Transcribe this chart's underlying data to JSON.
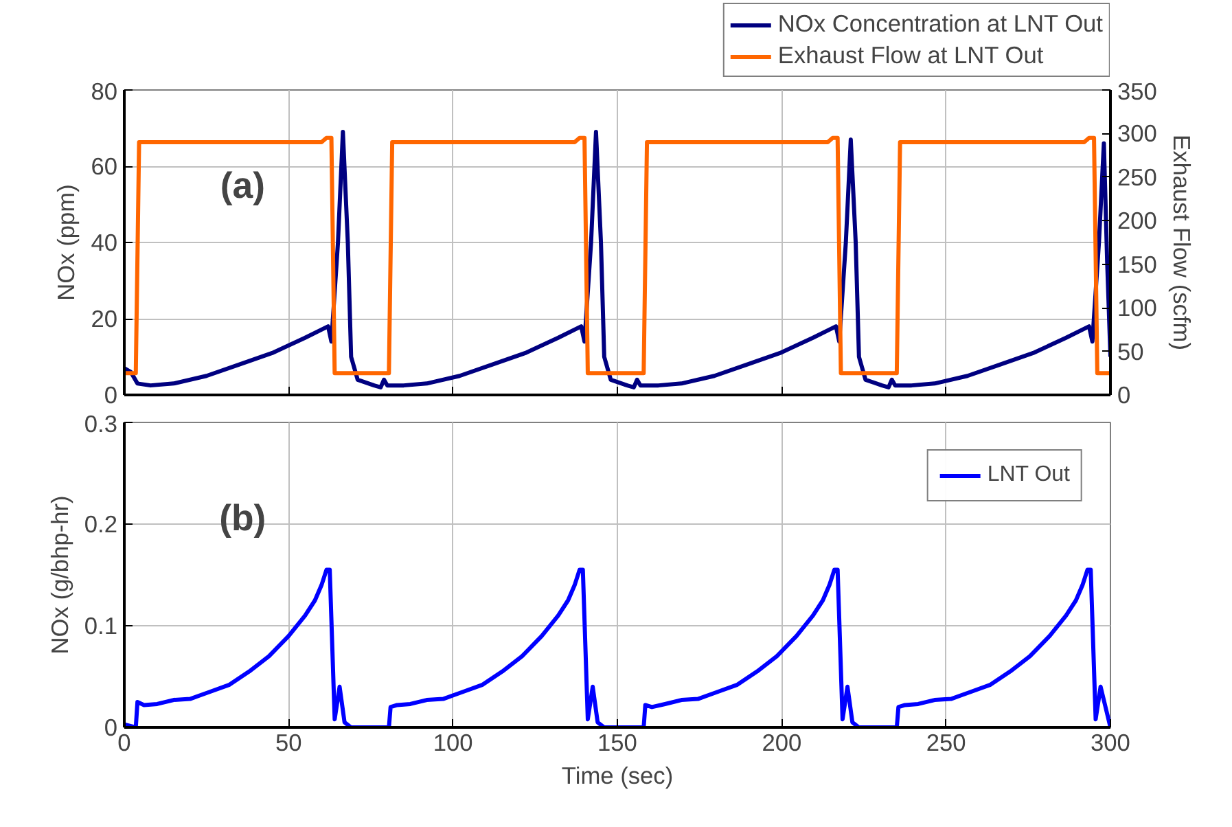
{
  "chart_data": [
    {
      "type": "line",
      "ylabel": "NOx (ppm)",
      "y2label": "Exhaust Flow (scfm)",
      "annotations": [
        "(a)"
      ],
      "grid": true,
      "legend": "top right",
      "tick_labels": "y",
      "line_style": "solid",
      "marker": "none",
      "xlim": [
        0,
        300
      ],
      "xticks": [
        0,
        50,
        100,
        150,
        200,
        250,
        300
      ],
      "ylim": [
        0,
        80
      ],
      "yticks": [
        0,
        20,
        40,
        60,
        80
      ],
      "y2lim": [
        0,
        350
      ],
      "y2ticks": [
        0,
        50,
        100,
        150,
        200,
        250,
        300,
        350
      ],
      "series": [
        {
          "name": "NOx Concentration at LNT Out",
          "color": "#000080",
          "x": [
            0,
            2,
            4,
            8,
            15,
            25,
            35,
            45,
            55,
            62,
            63,
            65,
            66.5,
            68,
            69,
            71,
            76,
            78,
            79,
            80,
            85,
            92,
            102,
            112,
            122,
            132,
            139,
            140,
            142,
            143.5,
            145,
            146,
            148,
            153,
            155,
            156,
            157,
            162.5,
            169.5,
            179.5,
            189.5,
            199.5,
            209.5,
            216.5,
            217.5,
            219.5,
            221,
            222.5,
            223.5,
            225.5,
            230.5,
            232.5,
            233.5,
            234.5,
            239.5,
            246.5,
            256.5,
            266.5,
            276.5,
            286.5,
            293.5,
            294.5,
            296.5,
            298,
            299,
            300
          ],
          "values": [
            7,
            6,
            3,
            2.5,
            3,
            5,
            8,
            11,
            15,
            18,
            14,
            40,
            69,
            40,
            10,
            4,
            2.5,
            2,
            4,
            2.5,
            2.5,
            3,
            5,
            8,
            11,
            15,
            18,
            14,
            40,
            69,
            40,
            10,
            4,
            2.5,
            2,
            4,
            2.5,
            2.5,
            3,
            5,
            8,
            11,
            15,
            18,
            14,
            40,
            67,
            40,
            10,
            4,
            2.5,
            2,
            4,
            2.5,
            2.5,
            3,
            5,
            8,
            11,
            15,
            18,
            14,
            40,
            66,
            35,
            10
          ]
        },
        {
          "name": "Exhaust Flow at LNT Out",
          "color": "#ff6600",
          "axis": "y2",
          "x": [
            0,
            3.5,
            4.5,
            60,
            61.5,
            63,
            64,
            80.5,
            81.5,
            137,
            138.5,
            140,
            141,
            158,
            159,
            214,
            215.5,
            217,
            218,
            235,
            236,
            292,
            293.5,
            295,
            296,
            300
          ],
          "values": [
            25,
            25,
            290,
            290,
            295,
            295,
            25,
            25,
            290,
            290,
            295,
            295,
            25,
            25,
            290,
            290,
            295,
            295,
            25,
            25,
            290,
            290,
            295,
            295,
            25,
            25
          ]
        }
      ]
    },
    {
      "type": "line",
      "xlabel": "Time (sec)",
      "ylabel": "NOx (g/bhp-hr)",
      "annotations": [
        "(b)"
      ],
      "grid": true,
      "legend": "top right",
      "line_style": "solid",
      "marker": "none",
      "xlim": [
        0,
        300
      ],
      "xticks": [
        0,
        50,
        100,
        150,
        200,
        250,
        300
      ],
      "ylim": [
        0,
        0.3
      ],
      "yticks": [
        {
          "value": 0,
          "label": "0"
        },
        0.1,
        0.2,
        0.3
      ],
      "series": [
        {
          "name": "LNT Out",
          "color": "#0000ff",
          "x": [
            0,
            3.5,
            4,
            6,
            10,
            15,
            20,
            26,
            32,
            38,
            44,
            50,
            55,
            58,
            60,
            61.5,
            62.5,
            64,
            65.5,
            67,
            69,
            80.5,
            81,
            83,
            87,
            92,
            97,
            103,
            109,
            115,
            121,
            127,
            132,
            135,
            137,
            138.5,
            139.5,
            141,
            142.5,
            144,
            146,
            158,
            158.5,
            160.5,
            164.5,
            169.5,
            174.5,
            180.5,
            186.5,
            192.5,
            198.5,
            204.5,
            209.5,
            212.5,
            214.5,
            216,
            217,
            218.5,
            220,
            221.5,
            223.5,
            235,
            235.5,
            237.5,
            241.5,
            246.5,
            251.5,
            257.5,
            263.5,
            269.5,
            275.5,
            281.5,
            286.5,
            289.5,
            291.5,
            293,
            294,
            295.5,
            297,
            298.5,
            300
          ],
          "values": [
            0.003,
            0,
            0.025,
            0.022,
            0.023,
            0.027,
            0.028,
            0.035,
            0.042,
            0.055,
            0.07,
            0.09,
            0.11,
            0.125,
            0.14,
            0.155,
            0.155,
            0.008,
            0.04,
            0.005,
            0,
            0,
            0.02,
            0.022,
            0.023,
            0.027,
            0.028,
            0.035,
            0.042,
            0.055,
            0.07,
            0.09,
            0.11,
            0.125,
            0.14,
            0.155,
            0.155,
            0.008,
            0.04,
            0.005,
            0,
            0,
            0.022,
            0.02,
            0.023,
            0.027,
            0.028,
            0.035,
            0.042,
            0.055,
            0.07,
            0.09,
            0.11,
            0.125,
            0.14,
            0.155,
            0.155,
            0.008,
            0.04,
            0.005,
            0,
            0,
            0.02,
            0.022,
            0.023,
            0.027,
            0.028,
            0.035,
            0.042,
            0.055,
            0.07,
            0.09,
            0.11,
            0.125,
            0.14,
            0.155,
            0.155,
            0.008,
            0.04,
            0.02,
            0
          ]
        }
      ]
    }
  ]
}
